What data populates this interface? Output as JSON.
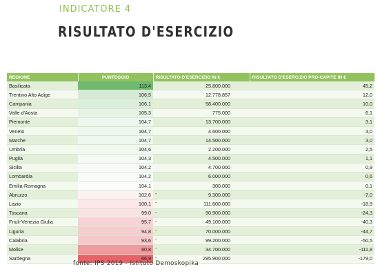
{
  "header": {
    "kicker": "INDICATORE 4",
    "title": "RISULTATO D'ESERCIZIO"
  },
  "table": {
    "columns": [
      "REGIONE",
      "PUNTEGGIO",
      "RISULTATO D'ESERCIZIO IN €",
      "RISULTATO D'ESERCIZIO PRO-CAPITE IN €"
    ],
    "rows": [
      {
        "regione": "Basilicata",
        "punteggio": "113,4",
        "dash": "",
        "risultato": "25.800.000",
        "procapite": "45,2",
        "color": "#6fba6f"
      },
      {
        "regione": "Trentino Alto Adige",
        "punteggio": "106,5",
        "dash": "",
        "risultato": "12.778.857",
        "procapite": "12,0",
        "color": "#d5ebd5"
      },
      {
        "regione": "Campania",
        "punteggio": "106,1",
        "dash": "",
        "risultato": "58.400.000",
        "procapite": "10,0",
        "color": "#dcefdc"
      },
      {
        "regione": "Valle d'Aosta",
        "punteggio": "105,3",
        "dash": "",
        "risultato": "775.000",
        "procapite": "6,1",
        "color": "#e6f3e6"
      },
      {
        "regione": "Piemonte",
        "punteggio": "104,7",
        "dash": "",
        "risultato": "13.700.000",
        "procapite": "3,1",
        "color": "#eef7ee"
      },
      {
        "regione": "Veneto",
        "punteggio": "104,7",
        "dash": "",
        "risultato": "4.600.000",
        "procapite": "3,0",
        "color": "#eef7ee"
      },
      {
        "regione": "Marche",
        "punteggio": "104,7",
        "dash": "",
        "risultato": "14.500.000",
        "procapite": "3,0",
        "color": "#eef7ee"
      },
      {
        "regione": "Umbria",
        "punteggio": "104,6",
        "dash": "",
        "risultato": "2.200.000",
        "procapite": "2,5",
        "color": "#f0f8f0"
      },
      {
        "regione": "Puglia",
        "punteggio": "104,3",
        "dash": "",
        "risultato": "4.500.000",
        "procapite": "1,1",
        "color": "#f4faf4"
      },
      {
        "regione": "Sicilia",
        "punteggio": "104,2",
        "dash": "",
        "risultato": "4.700.000",
        "procapite": "0,9",
        "color": "#f6fbf6"
      },
      {
        "regione": "Lombardia",
        "punteggio": "104,2",
        "dash": "",
        "risultato": "6.000.000",
        "procapite": "0,6",
        "color": "#f8fcf8"
      },
      {
        "regione": "Emilia-Romagna",
        "punteggio": "104,1",
        "dash": "",
        "risultato": "300.000",
        "procapite": "0,1",
        "color": "#fbfdfb"
      },
      {
        "regione": "Abruzzo",
        "punteggio": "102,6",
        "dash": "-",
        "risultato": "9.300.000",
        "procapite": "-7,0",
        "color": "#fdf2f2"
      },
      {
        "regione": "Lazio",
        "punteggio": "100,1",
        "dash": "-",
        "risultato": "111.600.000",
        "procapite": "-18,9",
        "color": "#fce7e8"
      },
      {
        "regione": "Toscana",
        "punteggio": "99,0",
        "dash": "-",
        "risultato": "90.900.000",
        "procapite": "-24,3",
        "color": "#fbe2e3"
      },
      {
        "regione": "Friuli-Venezia Giulia",
        "punteggio": "95,7",
        "dash": "-",
        "risultato": "49.100.000",
        "procapite": "-40,3",
        "color": "#f8d3d5"
      },
      {
        "regione": "Liguria",
        "punteggio": "94,8",
        "dash": "-",
        "risultato": "70.000.000",
        "procapite": "-44,7",
        "color": "#f7ced0"
      },
      {
        "regione": "Calabria",
        "punteggio": "93,6",
        "dash": "-",
        "risultato": "99.200.000",
        "procapite": "-50,5",
        "color": "#f5c8ca"
      },
      {
        "regione": "Molise",
        "punteggio": "80,8",
        "dash": "-",
        "risultato": "34.700.000",
        "procapite": "-111,8",
        "color": "#ee9a9e"
      },
      {
        "regione": "Sardegna",
        "punteggio": "66,9",
        "dash": "-",
        "risultato": "295.900.000",
        "procapite": "-179,0",
        "color": "#e7636a"
      }
    ]
  },
  "footer": {
    "source": "fonte: IPS 2019 - Istituto Demoskopika"
  }
}
